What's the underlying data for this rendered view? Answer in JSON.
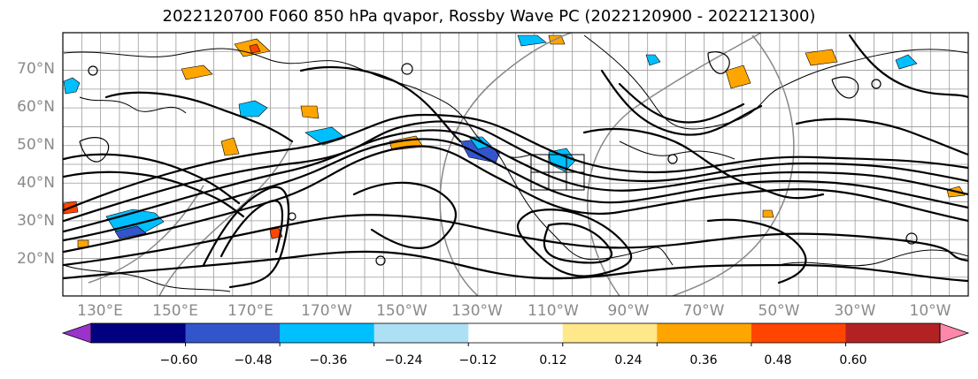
{
  "title": "2022120700 F060 850 hPa qvapor, Rossby Wave PC (2022120900 - 2022121300)",
  "latitude_labels": [
    "70°N",
    "60°N",
    "50°N",
    "40°N",
    "30°N",
    "20°N"
  ],
  "longitude_labels": [
    "130°E",
    "150°E",
    "170°E",
    "170°W",
    "150°W",
    "130°W",
    "110°W",
    "90°W",
    "70°W",
    "50°W",
    "30°W",
    "10°W"
  ],
  "colorbar": {
    "labels": [
      "−0.60",
      "−0.48",
      "−0.36",
      "−0.24",
      "−0.12",
      "0.12",
      "0.24",
      "0.36",
      "0.48",
      "0.60"
    ],
    "colors": [
      "#9933cc",
      "#000080",
      "#3355cc",
      "#00bfff",
      "#aee0f5",
      "#ffffff",
      "#ffe88a",
      "#ffa500",
      "#ff4500",
      "#b22222",
      "#ff88aa"
    ],
    "levels": [
      -0.6,
      -0.48,
      -0.36,
      -0.24,
      -0.12,
      0.12,
      0.24,
      0.36,
      0.48,
      0.6
    ]
  },
  "map": {
    "projection": "cylindrical",
    "lat_range": [
      10,
      80
    ],
    "lon_range": [
      120,
      360
    ]
  }
}
